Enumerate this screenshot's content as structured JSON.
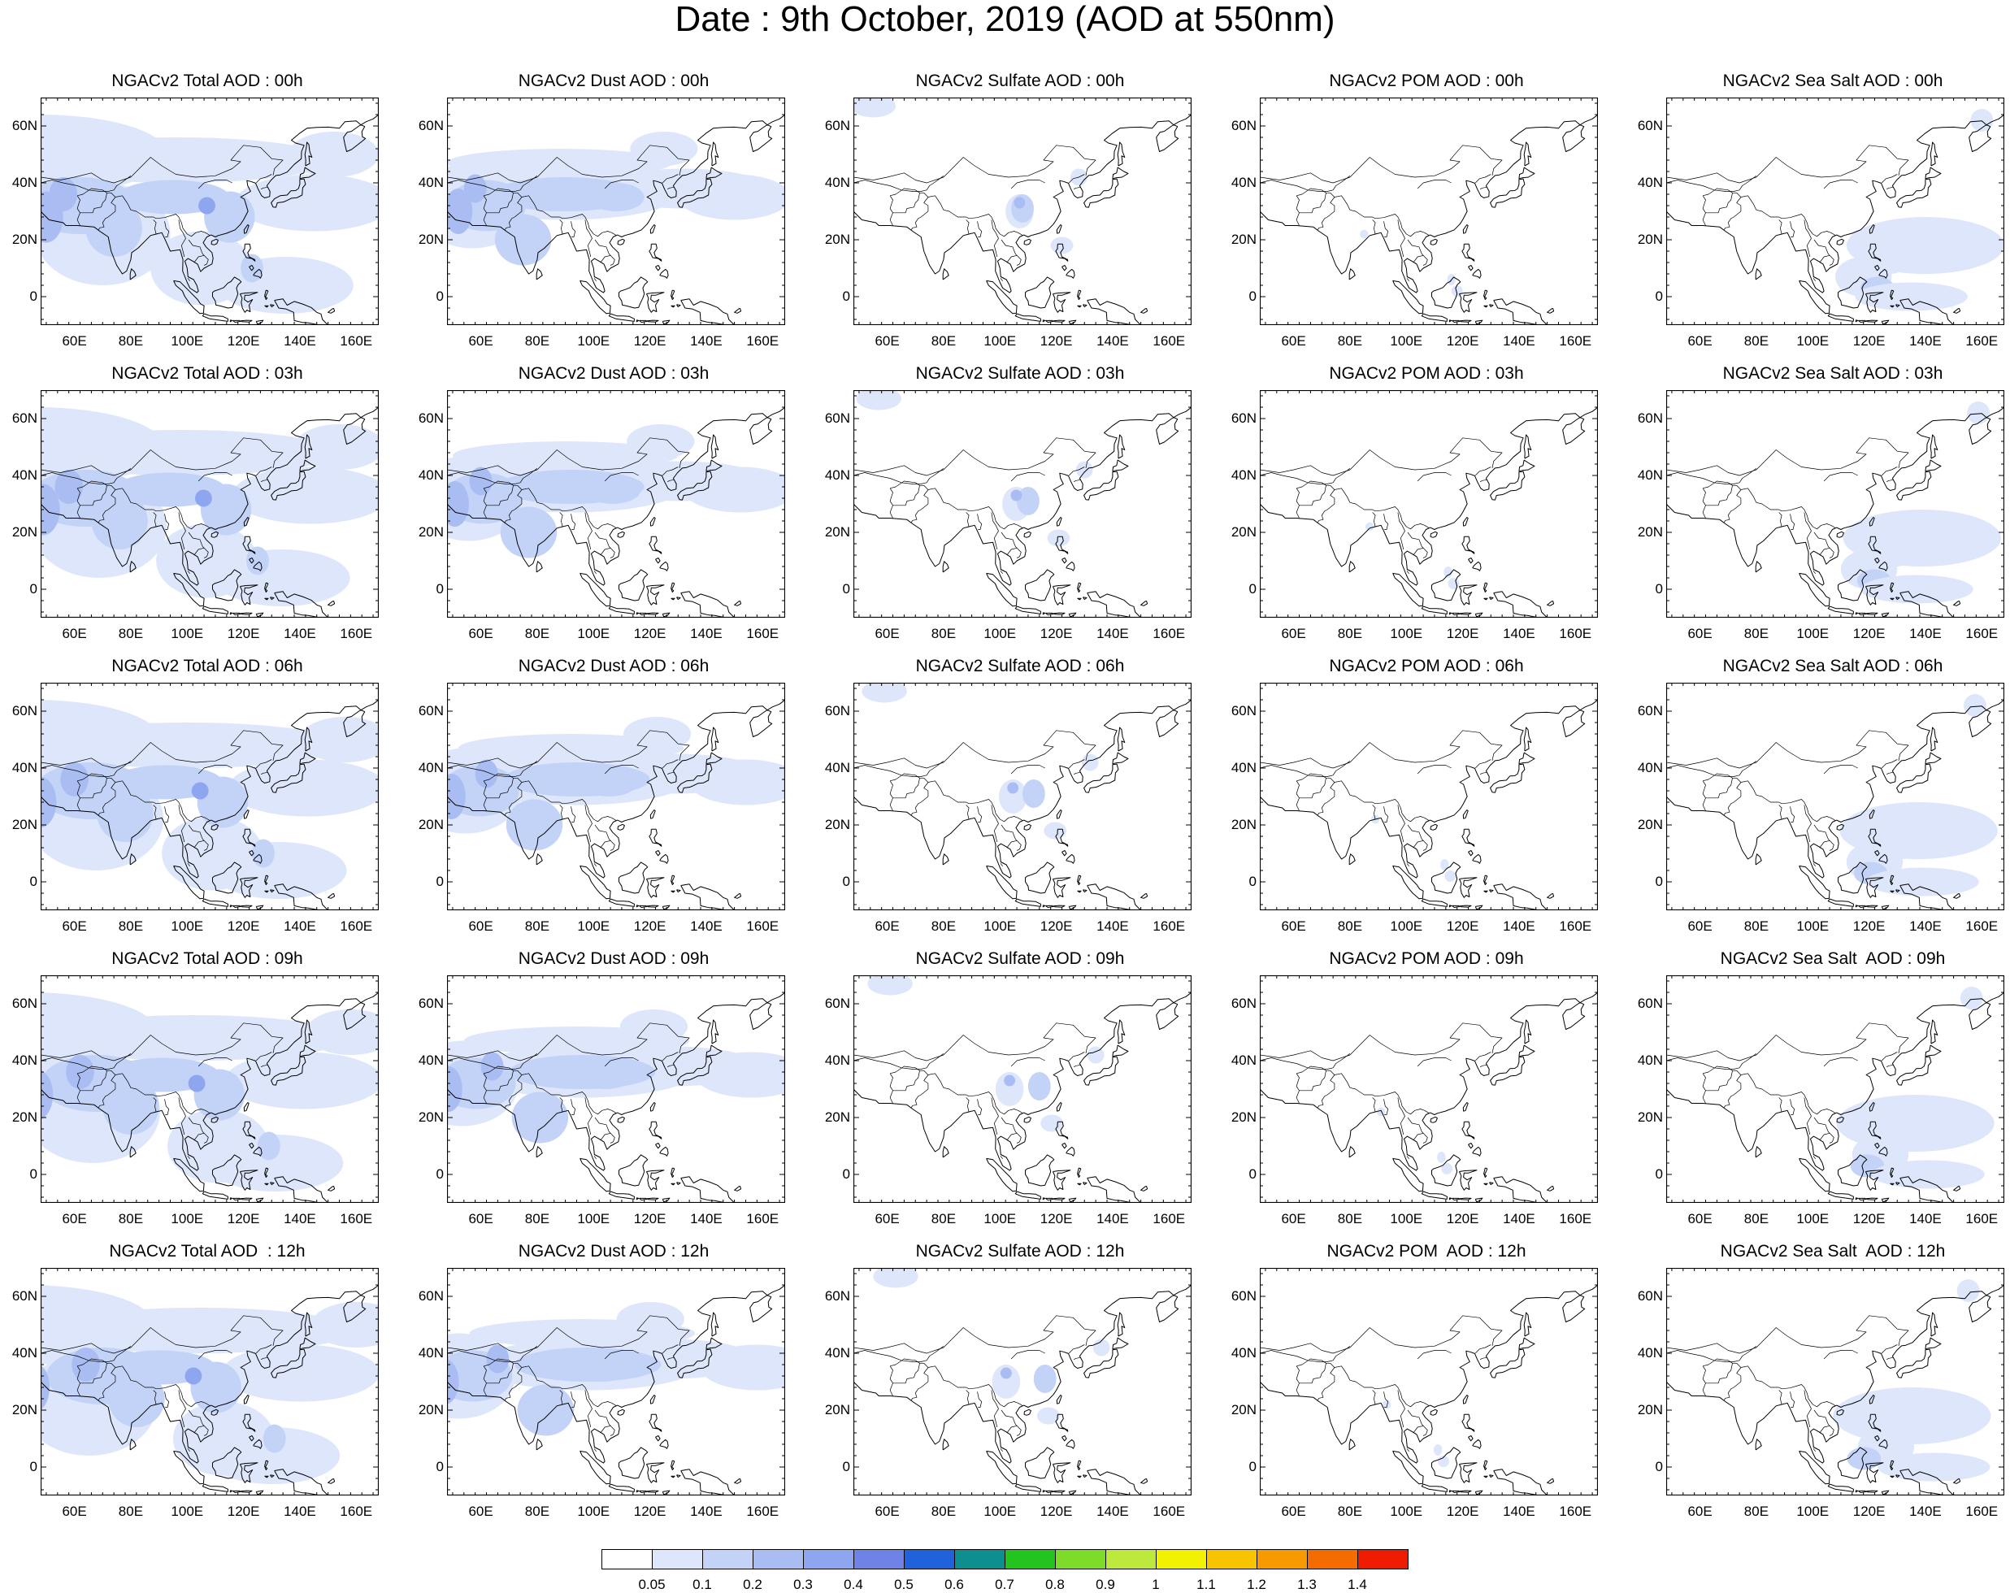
{
  "title": "Date : 9th October, 2019 (AOD at 550nm)",
  "x_tick_labels": [
    "60E",
    "80E",
    "100E",
    "120E",
    "140E",
    "160E"
  ],
  "y_tick_labels": [
    "60N",
    "40N",
    "20N",
    "0"
  ],
  "map_extent": {
    "lon": [
      48,
      168
    ],
    "lat": [
      -10,
      70
    ]
  },
  "columns": [
    "Total",
    "Dust",
    "Sulfate",
    "POM",
    "Sea Salt"
  ],
  "panel_titles": [
    [
      "NGACv2 Total AOD : 00h",
      "NGACv2 Dust AOD : 00h",
      "NGACv2 Sulfate AOD : 00h",
      "NGACv2 POM AOD : 00h",
      "NGACv2 Sea Salt AOD : 00h"
    ],
    [
      "NGACv2 Total AOD : 03h",
      "NGACv2 Dust AOD : 03h",
      "NGACv2 Sulfate AOD : 03h",
      "NGACv2 POM AOD : 03h",
      "NGACv2 Sea Salt AOD : 03h"
    ],
    [
      "NGACv2 Total AOD : 06h",
      "NGACv2 Dust AOD : 06h",
      "NGACv2 Sulfate AOD : 06h",
      "NGACv2 POM AOD : 06h",
      "NGACv2 Sea Salt AOD : 06h"
    ],
    [
      "NGACv2 Total AOD : 09h",
      "NGACv2 Dust AOD : 09h",
      "NGACv2 Sulfate AOD : 09h",
      "NGACv2 POM AOD : 09h",
      "NGACv2 Sea Salt  AOD : 09h"
    ],
    [
      "NGACv2 Total AOD  : 12h",
      "NGACv2 Dust AOD : 12h",
      "NGACv2 Sulfate AOD : 12h",
      "NGACv2 POM  AOD : 12h",
      "NGACv2 Sea Salt  AOD : 12h"
    ]
  ],
  "colorbar": {
    "labels": [
      "0.05",
      "0.1",
      "0.2",
      "0.3",
      "0.4",
      "0.5",
      "0.6",
      "0.7",
      "0.8",
      "0.9",
      "1",
      "1.1",
      "1.2",
      "1.3",
      "1.4"
    ],
    "colors": [
      "#ffffff",
      "#dde6fb",
      "#c3d2f7",
      "#a9bdf3",
      "#8ea5ef",
      "#6f82e6",
      "#1f62dc",
      "#0e8f8f",
      "#23c41d",
      "#7ddb2a",
      "#bde83c",
      "#f2f200",
      "#f8c400",
      "#f79a00",
      "#f46b00",
      "#ee1b00"
    ]
  }
}
